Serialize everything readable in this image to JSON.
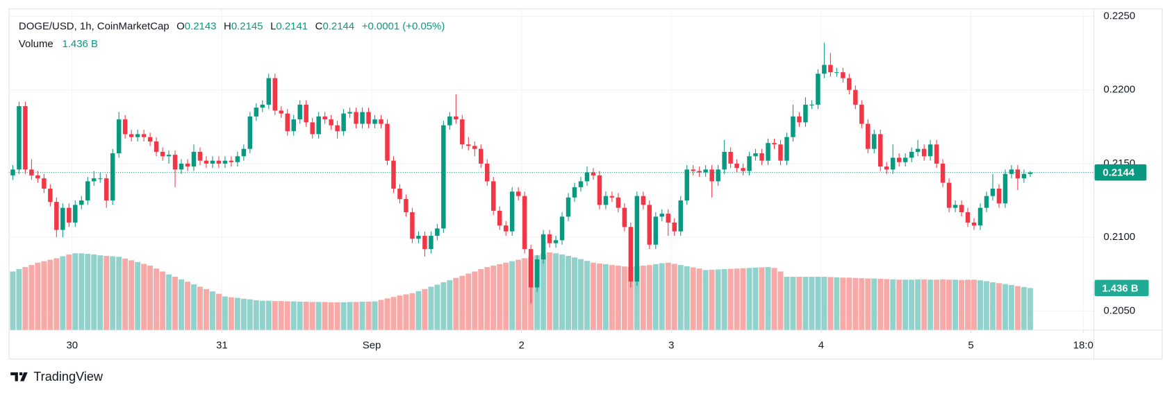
{
  "chart_data": {
    "type": "candlestick",
    "title": "DOGE/USD, 1h, CoinMarketCap",
    "change_label": "+0.0001 (+0.05%)",
    "ohlc_keys": [
      "O",
      "H",
      "L",
      "C"
    ],
    "brand": "TradingView",
    "up_color": "#089981",
    "down_color": "#f23645",
    "volume_up_color": "#92d2cc",
    "volume_down_color": "#f7a9a7",
    "grid": true,
    "ylim": [
      0.2037,
      0.2255
    ],
    "yticks": [
      {
        "value": 0.205,
        "label": "0.2050"
      },
      {
        "value": 0.21,
        "label": "0.2100"
      },
      {
        "value": 0.215,
        "label": "0.2150"
      },
      {
        "value": 0.22,
        "label": "0.2200"
      },
      {
        "value": 0.225,
        "label": "0.2250"
      }
    ],
    "xlim": [
      -0.6,
      173.2
    ],
    "xticks": [
      {
        "value": 9.5,
        "label": "30"
      },
      {
        "value": 33.5,
        "label": "31"
      },
      {
        "value": 57.5,
        "label": "Sep"
      },
      {
        "value": 81.5,
        "label": "2"
      },
      {
        "value": 105.5,
        "label": "3"
      },
      {
        "value": 129.5,
        "label": "4"
      },
      {
        "value": 153.5,
        "label": "5"
      },
      {
        "value": 171.5,
        "label": "18:0"
      }
    ],
    "open": [
      0.2142,
      0.2146,
      0.2189,
      0.2146,
      0.2142,
      0.214,
      0.2133,
      0.2124,
      0.2105,
      0.212,
      0.211,
      0.2122,
      0.2125,
      0.2138,
      0.214,
      0.214,
      0.2125,
      0.2157,
      0.218,
      0.217,
      0.2168,
      0.217,
      0.2168,
      0.2165,
      0.2158,
      0.2155,
      0.2156,
      0.2146,
      0.215,
      0.2148,
      0.2158,
      0.2152,
      0.215,
      0.2152,
      0.215,
      0.2152,
      0.2151,
      0.2155,
      0.216,
      0.2182,
      0.2188,
      0.219,
      0.2208,
      0.2186,
      0.2184,
      0.2172,
      0.218,
      0.219,
      0.2178,
      0.217,
      0.2182,
      0.218,
      0.2176,
      0.2172,
      0.2184,
      0.2185,
      0.2177,
      0.2185,
      0.2177,
      0.218,
      0.2177,
      0.2152,
      0.2133,
      0.2126,
      0.2117,
      0.2099,
      0.2101,
      0.2092,
      0.2101,
      0.2106,
      0.2176,
      0.2182,
      0.218,
      0.2163,
      0.2162,
      0.216,
      0.215,
      0.2138,
      0.2118,
      0.2108,
      0.2104,
      0.2131,
      0.2128,
      0.2092,
      0.2066,
      0.2085,
      0.2102,
      0.2096,
      0.2098,
      0.2114,
      0.2127,
      0.2134,
      0.2138,
      0.2144,
      0.2142,
      0.2122,
      0.2128,
      0.2127,
      0.212,
      0.2107,
      0.207,
      0.2128,
      0.2122,
      0.2095,
      0.2114,
      0.2116,
      0.211,
      0.2104,
      0.2125,
      0.2146,
      0.2145,
      0.2144,
      0.2146,
      0.2138,
      0.2146,
      0.2158,
      0.215,
      0.2147,
      0.2145,
      0.2155,
      0.2157,
      0.2152,
      0.2164,
      0.2163,
      0.2152,
      0.2168,
      0.2182,
      0.2178,
      0.219,
      0.219,
      0.2211,
      0.2217,
      0.2212,
      0.2212,
      0.2208,
      0.22,
      0.219,
      0.2177,
      0.216,
      0.217,
      0.2148,
      0.2146,
      0.2154,
      0.2151,
      0.2154,
      0.2158,
      0.216,
      0.2155,
      0.2163,
      0.215,
      0.2137,
      0.212,
      0.2122,
      0.2117,
      0.211,
      0.2108,
      0.212,
      0.2128,
      0.2133,
      0.2123,
      0.2143,
      0.2146,
      0.214,
      0.2143
    ],
    "high": [
      0.2149,
      0.2192,
      0.2192,
      0.2153,
      0.2145,
      0.2143,
      0.2136,
      0.2127,
      0.2123,
      0.2123,
      0.2125,
      0.2128,
      0.2141,
      0.2145,
      0.2144,
      0.2143,
      0.216,
      0.2185,
      0.2183,
      0.2173,
      0.2173,
      0.2173,
      0.2171,
      0.2168,
      0.2161,
      0.2159,
      0.2159,
      0.2153,
      0.2153,
      0.2163,
      0.2161,
      0.2155,
      0.2155,
      0.2155,
      0.2155,
      0.2155,
      0.2158,
      0.2163,
      0.2185,
      0.2191,
      0.2193,
      0.2211,
      0.2211,
      0.2189,
      0.2187,
      0.2183,
      0.2193,
      0.2193,
      0.2181,
      0.2185,
      0.2185,
      0.2183,
      0.2179,
      0.2187,
      0.2188,
      0.2188,
      0.2188,
      0.2188,
      0.2183,
      0.2183,
      0.218,
      0.2155,
      0.2136,
      0.2129,
      0.212,
      0.2104,
      0.2104,
      0.2104,
      0.2109,
      0.2179,
      0.2185,
      0.2197,
      0.2183,
      0.2168,
      0.2165,
      0.2163,
      0.2153,
      0.2141,
      0.2121,
      0.2111,
      0.2134,
      0.2134,
      0.2131,
      0.2095,
      0.2088,
      0.2105,
      0.2105,
      0.2101,
      0.2117,
      0.213,
      0.2137,
      0.2141,
      0.2148,
      0.2147,
      0.2145,
      0.2131,
      0.2131,
      0.213,
      0.2123,
      0.211,
      0.2131,
      0.2131,
      0.2125,
      0.2117,
      0.2119,
      0.2119,
      0.2113,
      0.2128,
      0.2149,
      0.2149,
      0.2148,
      0.2149,
      0.2149,
      0.2149,
      0.2166,
      0.2161,
      0.2153,
      0.215,
      0.2158,
      0.216,
      0.216,
      0.2167,
      0.2167,
      0.2166,
      0.2171,
      0.219,
      0.2185,
      0.2195,
      0.2193,
      0.2214,
      0.2232,
      0.2225,
      0.2215,
      0.2215,
      0.2211,
      0.2203,
      0.2193,
      0.218,
      0.2173,
      0.2173,
      0.2151,
      0.2163,
      0.2157,
      0.2157,
      0.2161,
      0.2166,
      0.2163,
      0.2166,
      0.2166,
      0.2153,
      0.214,
      0.2125,
      0.2125,
      0.212,
      0.2113,
      0.2123,
      0.2131,
      0.2143,
      0.2136,
      0.2146,
      0.2149,
      0.2149,
      0.2146,
      0.2145
    ],
    "low": [
      0.2139,
      0.2143,
      0.2143,
      0.2139,
      0.2137,
      0.213,
      0.2121,
      0.21,
      0.21,
      0.2107,
      0.2107,
      0.2119,
      0.2122,
      0.2135,
      0.2137,
      0.212,
      0.2122,
      0.2154,
      0.2167,
      0.2165,
      0.2165,
      0.2165,
      0.2162,
      0.2155,
      0.2152,
      0.215,
      0.2134,
      0.2143,
      0.2145,
      0.2145,
      0.2149,
      0.2147,
      0.2147,
      0.2147,
      0.2147,
      0.2148,
      0.2148,
      0.2152,
      0.2157,
      0.2179,
      0.2185,
      0.2187,
      0.2183,
      0.2181,
      0.2169,
      0.2169,
      0.2177,
      0.2175,
      0.2167,
      0.2167,
      0.2177,
      0.2173,
      0.2167,
      0.2169,
      0.2181,
      0.2174,
      0.2174,
      0.2174,
      0.2174,
      0.2174,
      0.2149,
      0.213,
      0.2123,
      0.2114,
      0.2096,
      0.2096,
      0.2087,
      0.2089,
      0.2098,
      0.2103,
      0.2173,
      0.2177,
      0.216,
      0.2159,
      0.2155,
      0.2147,
      0.2135,
      0.2115,
      0.2105,
      0.2101,
      0.2101,
      0.2125,
      0.2089,
      0.2055,
      0.2063,
      0.2082,
      0.2093,
      0.2093,
      0.2095,
      0.2111,
      0.2124,
      0.2131,
      0.2135,
      0.2139,
      0.2119,
      0.2119,
      0.2124,
      0.2117,
      0.2104,
      0.2066,
      0.2067,
      0.2119,
      0.2092,
      0.2092,
      0.2111,
      0.2101,
      0.2101,
      0.2101,
      0.2122,
      0.2142,
      0.2141,
      0.2141,
      0.2127,
      0.2135,
      0.2143,
      0.2147,
      0.2144,
      0.2142,
      0.2142,
      0.2152,
      0.2149,
      0.2149,
      0.216,
      0.2149,
      0.2149,
      0.2165,
      0.2175,
      0.2175,
      0.2187,
      0.2187,
      0.2208,
      0.2209,
      0.2209,
      0.2205,
      0.2197,
      0.2187,
      0.2174,
      0.2157,
      0.2157,
      0.2145,
      0.2143,
      0.2143,
      0.2148,
      0.2148,
      0.2151,
      0.2155,
      0.2152,
      0.2152,
      0.2147,
      0.2134,
      0.2117,
      0.2117,
      0.2114,
      0.2107,
      0.2105,
      0.2105,
      0.2117,
      0.2125,
      0.212,
      0.212,
      0.214,
      0.2132,
      0.2137,
      0.2141
    ],
    "close": [
      0.2146,
      0.2189,
      0.2146,
      0.2142,
      0.214,
      0.2133,
      0.2124,
      0.2105,
      0.212,
      0.211,
      0.2122,
      0.2125,
      0.2138,
      0.214,
      0.214,
      0.2125,
      0.2157,
      0.218,
      0.217,
      0.2168,
      0.217,
      0.2168,
      0.2165,
      0.2158,
      0.2155,
      0.2156,
      0.2146,
      0.215,
      0.2148,
      0.2158,
      0.2152,
      0.215,
      0.2152,
      0.215,
      0.2152,
      0.2151,
      0.2155,
      0.216,
      0.2182,
      0.2188,
      0.219,
      0.2208,
      0.2186,
      0.2184,
      0.2172,
      0.218,
      0.219,
      0.2178,
      0.217,
      0.2182,
      0.218,
      0.2176,
      0.2172,
      0.2184,
      0.2185,
      0.2177,
      0.2185,
      0.2177,
      0.218,
      0.2177,
      0.2152,
      0.2133,
      0.2126,
      0.2117,
      0.2099,
      0.2101,
      0.2092,
      0.2101,
      0.2106,
      0.2176,
      0.2182,
      0.218,
      0.2163,
      0.2162,
      0.216,
      0.215,
      0.2138,
      0.2118,
      0.2108,
      0.2104,
      0.2131,
      0.2128,
      0.2092,
      0.2066,
      0.2085,
      0.2102,
      0.2096,
      0.2098,
      0.2114,
      0.2127,
      0.2134,
      0.2138,
      0.2144,
      0.2142,
      0.2122,
      0.2128,
      0.2127,
      0.212,
      0.2107,
      0.207,
      0.2128,
      0.2122,
      0.2095,
      0.2114,
      0.2116,
      0.211,
      0.2104,
      0.2125,
      0.2146,
      0.2145,
      0.2144,
      0.2146,
      0.2138,
      0.2146,
      0.2158,
      0.215,
      0.2147,
      0.2145,
      0.2155,
      0.2157,
      0.2152,
      0.2164,
      0.2163,
      0.2152,
      0.2168,
      0.2182,
      0.2178,
      0.219,
      0.219,
      0.2211,
      0.2217,
      0.2212,
      0.2212,
      0.2208,
      0.22,
      0.219,
      0.2177,
      0.216,
      0.217,
      0.2148,
      0.2146,
      0.2154,
      0.2151,
      0.2154,
      0.2158,
      0.216,
      0.2155,
      0.2163,
      0.215,
      0.2137,
      0.212,
      0.2122,
      0.2117,
      0.211,
      0.2108,
      0.212,
      0.2128,
      0.2133,
      0.2123,
      0.2143,
      0.2146,
      0.214,
      0.2143,
      0.2144
    ],
    "volume": {
      "name": "Volume",
      "value_label": "1.436 B",
      "values": [
        2.0,
        2.08,
        2.15,
        2.22,
        2.3,
        2.35,
        2.4,
        2.45,
        2.52,
        2.58,
        2.62,
        2.62,
        2.6,
        2.58,
        2.55,
        2.53,
        2.52,
        2.5,
        2.44,
        2.38,
        2.32,
        2.26,
        2.2,
        2.1,
        2.0,
        1.9,
        1.82,
        1.73,
        1.65,
        1.56,
        1.48,
        1.4,
        1.32,
        1.24,
        1.15,
        1.12,
        1.1,
        1.07,
        1.05,
        1.02,
        1.0,
        1.0,
        0.99,
        0.99,
        0.98,
        0.98,
        0.97,
        0.97,
        0.96,
        0.96,
        0.96,
        0.95,
        0.95,
        0.95,
        0.96,
        0.96,
        0.97,
        0.97,
        0.98,
        1.03,
        1.08,
        1.13,
        1.18,
        1.22,
        1.26,
        1.33,
        1.4,
        1.48,
        1.55,
        1.63,
        1.7,
        1.78,
        1.85,
        1.93,
        2.0,
        2.08,
        2.15,
        2.2,
        2.25,
        2.3,
        2.35,
        2.4,
        2.45,
        2.5,
        2.55,
        2.6,
        2.65,
        2.62,
        2.58,
        2.53,
        2.48,
        2.42,
        2.36,
        2.3,
        2.27,
        2.25,
        2.22,
        2.2,
        2.17,
        2.15,
        2.18,
        2.2,
        2.22,
        2.25,
        2.28,
        2.3,
        2.26,
        2.22,
        2.18,
        2.14,
        2.1,
        2.05,
        2.06,
        2.07,
        2.08,
        2.09,
        2.1,
        2.11,
        2.12,
        2.13,
        2.14,
        2.15,
        2.12,
        2.0,
        1.82,
        1.82,
        1.82,
        1.82,
        1.82,
        1.82,
        1.82,
        1.81,
        1.8,
        1.79,
        1.79,
        1.78,
        1.77,
        1.76,
        1.76,
        1.75,
        1.74,
        1.73,
        1.72,
        1.72,
        1.72,
        1.73,
        1.73,
        1.72,
        1.72,
        1.73,
        1.72,
        1.72,
        1.71,
        1.72,
        1.72,
        1.7,
        1.67,
        1.63,
        1.6,
        1.57,
        1.54,
        1.5,
        1.47,
        1.436
      ]
    }
  }
}
